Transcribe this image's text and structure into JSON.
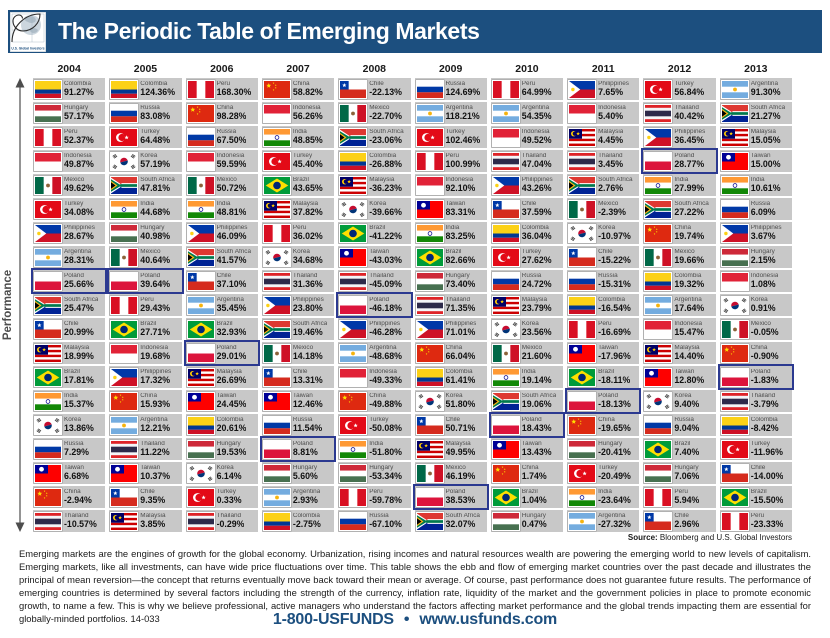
{
  "header": {
    "title": "The Periodic Table of Emerging Markets",
    "logo_text": "U.S. Global Investors"
  },
  "performance_axis_label": "Performance",
  "source": {
    "label": "Source:",
    "text": " Bloomberg and U.S. Global Investors"
  },
  "footer": {
    "paragraph": "Emerging markets are the engines of growth for the global economy. Urbanization, rising incomes and natural resources wealth are powering the emerging world to new levels of capitalism. Emerging markets, like all investments, can have wide price fluctuations over time. This table shows the ebb and flow of emerging market countries over the past decade and illustrates the principal of mean reversion—the concept that returns eventually move back toward their mean or average. Of course, past performance does not guarantee future results. The performance of emerging countries is determined by several factors including the strength of the currency, inflation rate, liquidity of the market and the government policies in place to promote economic growth, to name a few. This is why we believe professional, active managers who understand the factors affecting market performance and the global trends impacting them are essential for globally-minded portfolios. 14-033",
    "phone": "1-800-USFUNDS",
    "bullet": "•",
    "website": "www.usfunds.com"
  },
  "colors": {
    "header_bg": "#1C4F7F",
    "cell_bg": "#C8C8C8",
    "highlight_border": "#2B3990",
    "accent_navy": "#1C4F7F"
  },
  "icons": {
    "performance_axis": "double-arrow-vertical",
    "logo": "golden-spiral-globe",
    "flags": "country-flag"
  },
  "chart_data": {
    "type": "table",
    "title": "The Periodic Table of Emerging Markets",
    "highlight_country": "Poland",
    "years": [
      "2004",
      "2005",
      "2006",
      "2007",
      "2008",
      "2009",
      "2010",
      "2011",
      "2012",
      "2013"
    ],
    "columns": [
      {
        "year": "2004",
        "cells": [
          [
            "Colombia",
            "91.27%"
          ],
          [
            "Hungary",
            "57.17%"
          ],
          [
            "Peru",
            "52.37%"
          ],
          [
            "Indonesia",
            "49.87%"
          ],
          [
            "Mexico",
            "49.62%"
          ],
          [
            "Turkey",
            "34.08%"
          ],
          [
            "Philippines",
            "28.67%"
          ],
          [
            "Argentina",
            "28.31%"
          ],
          [
            "Poland",
            "25.66%"
          ],
          [
            "South Africa",
            "25.47%"
          ],
          [
            "Chile",
            "20.99%"
          ],
          [
            "Malaysia",
            "18.99%"
          ],
          [
            "Brazil",
            "17.81%"
          ],
          [
            "India",
            "15.37%"
          ],
          [
            "Korea",
            "13.86%"
          ],
          [
            "Russia",
            "7.29%"
          ],
          [
            "Taiwan",
            "6.68%"
          ],
          [
            "China",
            "-2.94%"
          ],
          [
            "Thailand",
            "-10.57%"
          ]
        ]
      },
      {
        "year": "2005",
        "cells": [
          [
            "Colombia",
            "124.36%"
          ],
          [
            "Russia",
            "83.08%"
          ],
          [
            "Turkey",
            "64.48%"
          ],
          [
            "Korea",
            "57.19%"
          ],
          [
            "South Africa",
            "47.81%"
          ],
          [
            "India",
            "44.68%"
          ],
          [
            "Hungary",
            "40.98%"
          ],
          [
            "Mexico",
            "40.64%"
          ],
          [
            "Poland",
            "39.64%"
          ],
          [
            "Peru",
            "29.43%"
          ],
          [
            "Brazil",
            "27.71%"
          ],
          [
            "Indonesia",
            "19.68%"
          ],
          [
            "Philippines",
            "17.32%"
          ],
          [
            "China",
            "15.93%"
          ],
          [
            "Argentina",
            "12.21%"
          ],
          [
            "Thailand",
            "11.22%"
          ],
          [
            "Taiwan",
            "10.37%"
          ],
          [
            "Chile",
            "9.35%"
          ],
          [
            "Malaysia",
            "3.85%"
          ]
        ]
      },
      {
        "year": "2006",
        "cells": [
          [
            "Peru",
            "168.30%"
          ],
          [
            "China",
            "98.28%"
          ],
          [
            "Russia",
            "67.50%"
          ],
          [
            "Indonesia",
            "59.59%"
          ],
          [
            "Mexico",
            "50.72%"
          ],
          [
            "India",
            "48.81%"
          ],
          [
            "Philippines",
            "46.09%"
          ],
          [
            "South Africa",
            "41.57%"
          ],
          [
            "Chile",
            "37.10%"
          ],
          [
            "Argentina",
            "35.45%"
          ],
          [
            "Brazil",
            "32.93%"
          ],
          [
            "Poland",
            "29.01%"
          ],
          [
            "Malaysia",
            "26.69%"
          ],
          [
            "Taiwan",
            "24.45%"
          ],
          [
            "Colombia",
            "20.61%"
          ],
          [
            "Hungary",
            "19.53%"
          ],
          [
            "Korea",
            "6.14%"
          ],
          [
            "Turkey",
            "0.33%"
          ],
          [
            "Thailand",
            "-0.29%"
          ]
        ]
      },
      {
        "year": "2007",
        "cells": [
          [
            "China",
            "58.82%"
          ],
          [
            "Indonesia",
            "56.26%"
          ],
          [
            "India",
            "48.85%"
          ],
          [
            "Turkey",
            "45.40%"
          ],
          [
            "Brazil",
            "43.65%"
          ],
          [
            "Malaysia",
            "37.82%"
          ],
          [
            "Peru",
            "36.02%"
          ],
          [
            "Korea",
            "34.68%"
          ],
          [
            "Thailand",
            "31.36%"
          ],
          [
            "Philippines",
            "23.80%"
          ],
          [
            "South Africa",
            "19.46%"
          ],
          [
            "Mexico",
            "14.18%"
          ],
          [
            "Chile",
            "13.31%"
          ],
          [
            "Taiwan",
            "12.46%"
          ],
          [
            "Russia",
            "11.54%"
          ],
          [
            "Poland",
            "8.81%"
          ],
          [
            "Hungary",
            "5.60%"
          ],
          [
            "Argentina",
            "2.93%"
          ],
          [
            "Colombia",
            "-2.75%"
          ]
        ]
      },
      {
        "year": "2008",
        "cells": [
          [
            "Chile",
            "-22.13%"
          ],
          [
            "Mexico",
            "-22.70%"
          ],
          [
            "South Africa",
            "-23.06%"
          ],
          [
            "Colombia",
            "-26.88%"
          ],
          [
            "Malaysia",
            "-36.23%"
          ],
          [
            "Korea",
            "-39.66%"
          ],
          [
            "Brazil",
            "-41.22%"
          ],
          [
            "Taiwan",
            "-43.03%"
          ],
          [
            "Thailand",
            "-45.09%"
          ],
          [
            "Poland",
            "-46.18%"
          ],
          [
            "Philippines",
            "-46.28%"
          ],
          [
            "Argentina",
            "-48.68%"
          ],
          [
            "Indonesia",
            "-49.33%"
          ],
          [
            "China",
            "-49.88%"
          ],
          [
            "Turkey",
            "-50.08%"
          ],
          [
            "India",
            "-51.80%"
          ],
          [
            "Hungary",
            "-53.34%"
          ],
          [
            "Peru",
            "-59.78%"
          ],
          [
            "Russia",
            "-67.10%"
          ]
        ]
      },
      {
        "year": "2009",
        "cells": [
          [
            "Russia",
            "124.69%"
          ],
          [
            "Argentina",
            "118.21%"
          ],
          [
            "Turkey",
            "102.46%"
          ],
          [
            "Peru",
            "100.99%"
          ],
          [
            "Indonesia",
            "92.10%"
          ],
          [
            "Taiwan",
            "83.31%"
          ],
          [
            "India",
            "83.25%"
          ],
          [
            "Brazil",
            "82.66%"
          ],
          [
            "Hungary",
            "73.40%"
          ],
          [
            "Thailand",
            "71.35%"
          ],
          [
            "Philippines",
            "71.01%"
          ],
          [
            "China",
            "66.04%"
          ],
          [
            "Colombia",
            "61.41%"
          ],
          [
            "Korea",
            "51.80%"
          ],
          [
            "Chile",
            "50.71%"
          ],
          [
            "Malaysia",
            "49.95%"
          ],
          [
            "Mexico",
            "46.19%"
          ],
          [
            "Poland",
            "38.53%"
          ],
          [
            "South Africa",
            "32.07%"
          ]
        ]
      },
      {
        "year": "2010",
        "cells": [
          [
            "Peru",
            "64.99%"
          ],
          [
            "Argentina",
            "54.35%"
          ],
          [
            "Indonesia",
            "49.52%"
          ],
          [
            "Thailand",
            "47.04%"
          ],
          [
            "Philippines",
            "43.26%"
          ],
          [
            "Chile",
            "37.59%"
          ],
          [
            "Colombia",
            "36.04%"
          ],
          [
            "Turkey",
            "27.62%"
          ],
          [
            "Russia",
            "24.72%"
          ],
          [
            "Malaysia",
            "23.79%"
          ],
          [
            "Korea",
            "23.56%"
          ],
          [
            "Mexico",
            "21.60%"
          ],
          [
            "India",
            "19.14%"
          ],
          [
            "South Africa",
            "19.06%"
          ],
          [
            "Poland",
            "18.43%"
          ],
          [
            "Taiwan",
            "13.43%"
          ],
          [
            "China",
            "1.74%"
          ],
          [
            "Brazil",
            "1.04%"
          ],
          [
            "Hungary",
            "0.47%"
          ]
        ]
      },
      {
        "year": "2011",
        "cells": [
          [
            "Philippines",
            "7.65%"
          ],
          [
            "Indonesia",
            "5.40%"
          ],
          [
            "Malaysia",
            "4.45%"
          ],
          [
            "Thailand",
            "3.45%"
          ],
          [
            "South Africa",
            "2.76%"
          ],
          [
            "Mexico",
            "-2.39%"
          ],
          [
            "Korea",
            "-10.97%"
          ],
          [
            "Chile",
            "-15.22%"
          ],
          [
            "Russia",
            "-15.31%"
          ],
          [
            "Colombia",
            "-16.54%"
          ],
          [
            "Peru",
            "-16.69%"
          ],
          [
            "Taiwan",
            "-17.96%"
          ],
          [
            "Brazil",
            "-18.11%"
          ],
          [
            "Poland",
            "-18.13%"
          ],
          [
            "China",
            "-19.65%"
          ],
          [
            "Hungary",
            "-20.41%"
          ],
          [
            "Turkey",
            "-20.49%"
          ],
          [
            "India",
            "-23.64%"
          ],
          [
            "Argentina",
            "-27.32%"
          ]
        ]
      },
      {
        "year": "2012",
        "cells": [
          [
            "Turkey",
            "56.84%"
          ],
          [
            "Thailand",
            "40.42%"
          ],
          [
            "Philippines",
            "36.45%"
          ],
          [
            "Poland",
            "28.77%"
          ],
          [
            "India",
            "27.99%"
          ],
          [
            "South Africa",
            "27.22%"
          ],
          [
            "China",
            "19.74%"
          ],
          [
            "Mexico",
            "19.66%"
          ],
          [
            "Colombia",
            "19.32%"
          ],
          [
            "Argentina",
            "17.64%"
          ],
          [
            "Indonesia",
            "15.47%"
          ],
          [
            "Malaysia",
            "14.40%"
          ],
          [
            "Taiwan",
            "12.80%"
          ],
          [
            "Korea",
            "9.40%"
          ],
          [
            "Russia",
            "9.04%"
          ],
          [
            "Brazil",
            "7.40%"
          ],
          [
            "Hungary",
            "7.06%"
          ],
          [
            "Peru",
            "5.94%"
          ],
          [
            "Chile",
            "2.96%"
          ]
        ]
      },
      {
        "year": "2013",
        "cells": [
          [
            "Argentina",
            "91.30%"
          ],
          [
            "South Africa",
            "21.27%"
          ],
          [
            "Malaysia",
            "15.05%"
          ],
          [
            "Taiwan",
            "15.00%"
          ],
          [
            "India",
            "10.61%"
          ],
          [
            "Russia",
            "6.09%"
          ],
          [
            "Philippines",
            "3.67%"
          ],
          [
            "Hungary",
            "2.15%"
          ],
          [
            "Indonesia",
            "1.08%"
          ],
          [
            "Korea",
            "0.91%"
          ],
          [
            "Mexico",
            "-0.05%"
          ],
          [
            "China",
            "-0.90%"
          ],
          [
            "Poland",
            "-1.83%"
          ],
          [
            "Thailand",
            "-3.79%"
          ],
          [
            "Colombia",
            "-8.42%"
          ],
          [
            "Turkey",
            "-11.96%"
          ],
          [
            "Chile",
            "-14.00%"
          ],
          [
            "Brazil",
            "-15.50%"
          ],
          [
            "Peru",
            "-23.33%"
          ]
        ]
      }
    ]
  }
}
